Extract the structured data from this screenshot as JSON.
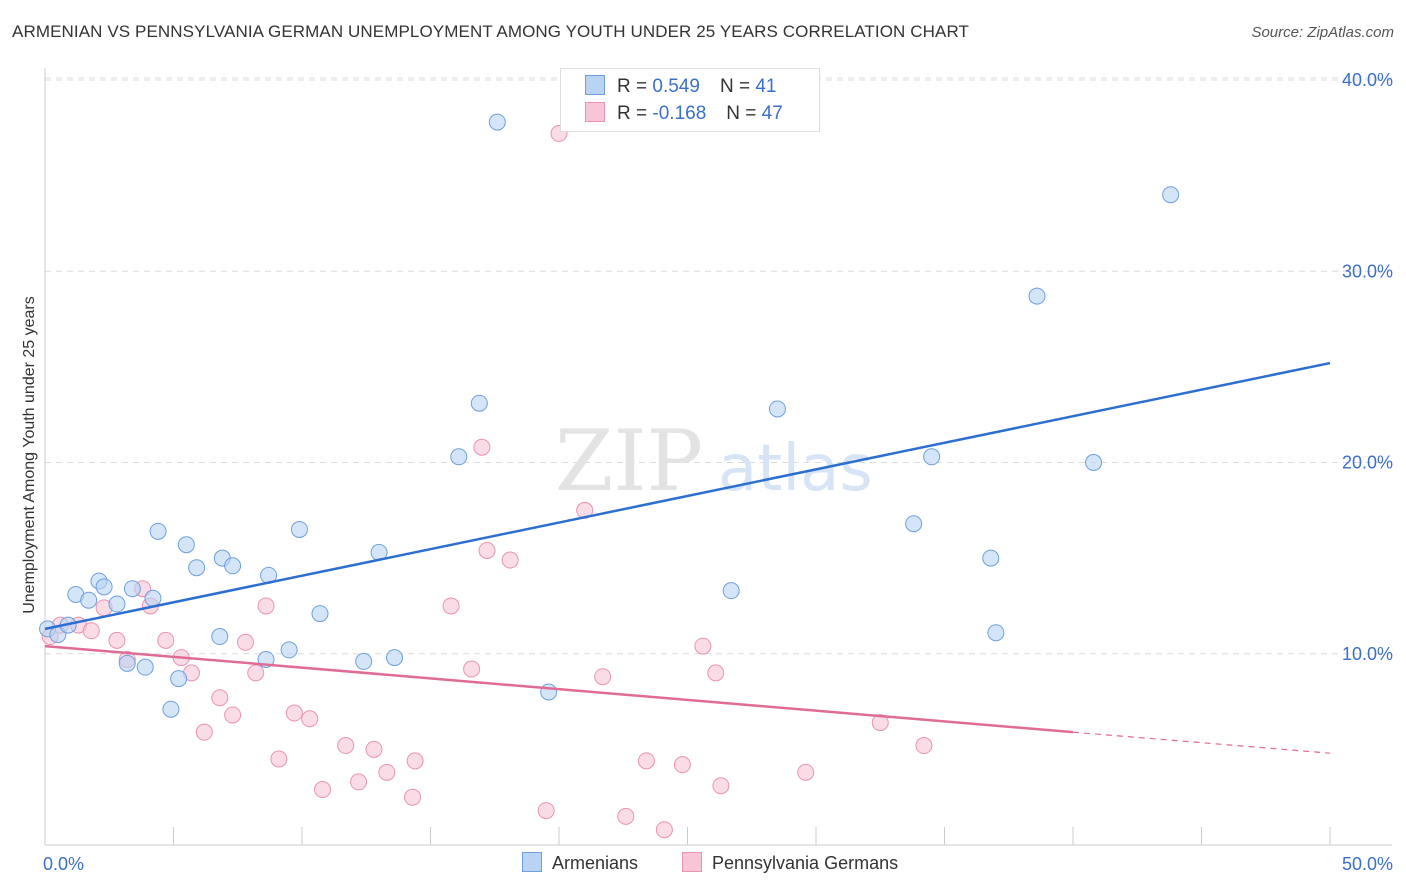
{
  "header": {
    "title": "ARMENIAN VS PENNSYLVANIA GERMAN UNEMPLOYMENT AMONG YOUTH UNDER 25 YEARS CORRELATION CHART",
    "source": "Source: ZipAtlas.com"
  },
  "watermark": {
    "zip": "ZIP",
    "atlas": "atlas"
  },
  "legend": {
    "r_label": "R =",
    "n_label": "N =",
    "armenians": {
      "r": "0.549",
      "n": "41"
    },
    "penn_germans": {
      "r": "-0.168",
      "n": "47"
    }
  },
  "colors": {
    "armenians_fill": "#b9d3f3",
    "armenians_stroke": "#6f9fdc",
    "armenians_line": "#2c6fd1",
    "penn_fill": "#f7c5d5",
    "penn_stroke": "#ea93b2",
    "penn_line": "#e06b96",
    "tick_label": "#3b6fc9"
  },
  "chart_data": {
    "type": "scatter",
    "title": "ARMENIAN VS PENNSYLVANIA GERMAN UNEMPLOYMENT AMONG YOUTH UNDER 25 YEARS CORRELATION CHART",
    "xlabel": "",
    "ylabel": "Unemployment Among Youth under 25 years",
    "xlim": [
      0,
      50
    ],
    "ylim": [
      0,
      40
    ],
    "x_tick_labels": [
      "0.0%",
      "50.0%"
    ],
    "y_ticks": [
      10,
      20,
      30,
      40
    ],
    "y_tick_labels": [
      "10.0%",
      "20.0%",
      "30.0%",
      "40.0%"
    ],
    "series": [
      {
        "name": "Armenians",
        "r": 0.549,
        "n": 41,
        "trend": {
          "x0": 0,
          "y0": 11.3,
          "x1": 50,
          "y1": 25.2
        },
        "points": [
          [
            0.1,
            11.3
          ],
          [
            0.5,
            11.0
          ],
          [
            0.9,
            11.5
          ],
          [
            1.2,
            13.1
          ],
          [
            1.7,
            12.8
          ],
          [
            2.1,
            13.8
          ],
          [
            2.3,
            13.5
          ],
          [
            2.8,
            12.6
          ],
          [
            3.2,
            9.5
          ],
          [
            3.4,
            13.4
          ],
          [
            3.9,
            9.3
          ],
          [
            4.2,
            12.9
          ],
          [
            4.4,
            16.4
          ],
          [
            4.9,
            7.1
          ],
          [
            5.2,
            8.7
          ],
          [
            5.5,
            15.7
          ],
          [
            5.9,
            14.5
          ],
          [
            6.8,
            10.9
          ],
          [
            6.9,
            15.0
          ],
          [
            7.3,
            14.6
          ],
          [
            8.6,
            9.7
          ],
          [
            8.7,
            14.1
          ],
          [
            9.5,
            10.2
          ],
          [
            9.9,
            16.5
          ],
          [
            10.7,
            12.1
          ],
          [
            12.4,
            9.6
          ],
          [
            13.0,
            15.3
          ],
          [
            13.6,
            9.8
          ],
          [
            16.1,
            20.3
          ],
          [
            16.9,
            23.1
          ],
          [
            17.6,
            37.8
          ],
          [
            19.6,
            8.0
          ],
          [
            26.7,
            13.3
          ],
          [
            28.5,
            22.8
          ],
          [
            33.8,
            16.8
          ],
          [
            34.5,
            20.3
          ],
          [
            36.8,
            15.0
          ],
          [
            37.0,
            11.1
          ],
          [
            38.6,
            28.7
          ],
          [
            40.8,
            20.0
          ],
          [
            43.8,
            34.0
          ]
        ]
      },
      {
        "name": "Pennsylvania Germans",
        "r": -0.168,
        "n": 47,
        "trend": {
          "x0": 0,
          "y0": 10.4,
          "x1": 40,
          "y1": 5.9,
          "dash_to_x": 50,
          "dash_to_y": 4.8
        },
        "points": [
          [
            0.2,
            10.9
          ],
          [
            0.6,
            11.5
          ],
          [
            1.3,
            11.5
          ],
          [
            1.8,
            11.2
          ],
          [
            2.3,
            12.4
          ],
          [
            2.8,
            10.7
          ],
          [
            3.2,
            9.7
          ],
          [
            3.8,
            13.4
          ],
          [
            4.1,
            12.5
          ],
          [
            4.7,
            10.7
          ],
          [
            5.3,
            9.8
          ],
          [
            5.7,
            9.0
          ],
          [
            6.2,
            5.9
          ],
          [
            6.8,
            7.7
          ],
          [
            7.3,
            6.8
          ],
          [
            7.8,
            10.6
          ],
          [
            8.2,
            9.0
          ],
          [
            8.6,
            12.5
          ],
          [
            9.1,
            4.5
          ],
          [
            9.7,
            6.9
          ],
          [
            10.3,
            6.6
          ],
          [
            10.8,
            2.9
          ],
          [
            11.7,
            5.2
          ],
          [
            12.2,
            3.3
          ],
          [
            12.8,
            5.0
          ],
          [
            13.3,
            3.8
          ],
          [
            14.3,
            2.5
          ],
          [
            14.4,
            4.4
          ],
          [
            15.8,
            12.5
          ],
          [
            16.6,
            9.2
          ],
          [
            17.0,
            20.8
          ],
          [
            17.2,
            15.4
          ],
          [
            18.1,
            14.9
          ],
          [
            19.5,
            1.8
          ],
          [
            20.0,
            37.2
          ],
          [
            21.0,
            17.5
          ],
          [
            21.7,
            8.8
          ],
          [
            22.6,
            1.5
          ],
          [
            23.4,
            4.4
          ],
          [
            24.1,
            0.8
          ],
          [
            24.8,
            4.2
          ],
          [
            25.6,
            10.4
          ],
          [
            26.1,
            9.0
          ],
          [
            26.3,
            3.1
          ],
          [
            29.6,
            3.8
          ],
          [
            32.5,
            6.4
          ],
          [
            34.2,
            5.2
          ]
        ]
      }
    ]
  },
  "bottom_legend": {
    "armenians": "Armenians",
    "penn_germans": "Pennsylvania Germans"
  }
}
